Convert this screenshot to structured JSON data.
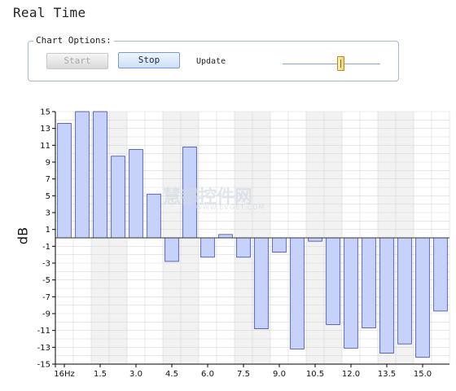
{
  "window": {
    "title": "Real Time"
  },
  "options": {
    "legend": "Chart Options:",
    "start_label": "Start",
    "stop_label": "Stop",
    "update_label": "Update",
    "update_level": 0.6
  },
  "watermark": {
    "text": "慧都控件网",
    "sub": "WWW.EVGET.COM"
  },
  "colors": {
    "bar_fill": "#c6d2f9",
    "bar_stroke": "#3a4aa8",
    "grid": "#d9d9d9",
    "band": "#f2f2f2",
    "axis": "#000000"
  },
  "chart_data": {
    "type": "bar",
    "ylabel": "dB",
    "ylim": [
      -15,
      15
    ],
    "y_ticks": [
      15,
      13,
      11,
      9,
      7,
      5,
      3,
      1,
      -1,
      -3,
      -5,
      -7,
      -9,
      -11,
      -13,
      -15
    ],
    "x_tick_labels": [
      "16Hz",
      "1.5",
      "3.0",
      "4.5",
      "6.0",
      "7.5",
      "9.0",
      "10.5",
      "12.0",
      "13.5",
      "15.0"
    ],
    "values": [
      13.6,
      15,
      15,
      9.7,
      10.5,
      5.2,
      -2.8,
      10.8,
      -2.3,
      0.4,
      -2.3,
      -10.8,
      -1.7,
      -13.2,
      -0.4,
      -10.3,
      -13.1,
      -10.7,
      -13.7,
      -12.6,
      -14.2,
      -8.7
    ],
    "grid": true,
    "legend": "none"
  }
}
